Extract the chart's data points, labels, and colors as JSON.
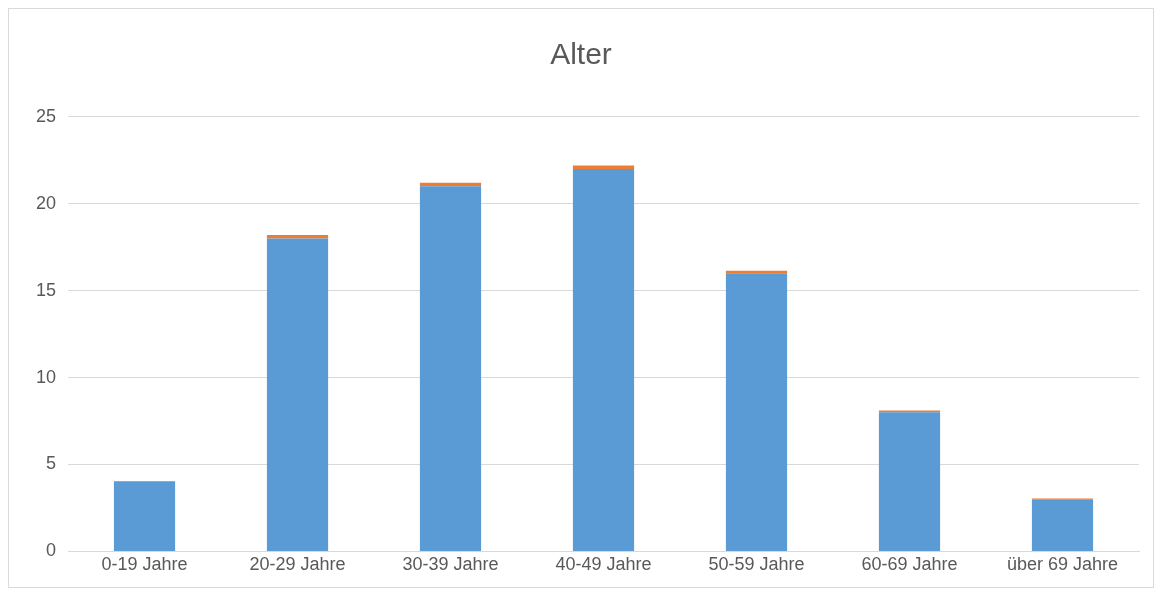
{
  "chart_data": {
    "type": "bar",
    "title": "Alter",
    "stacked": true,
    "categories": [
      "0-19 Jahre",
      "20-29 Jahre",
      "30-39 Jahre",
      "40-49 Jahre",
      "50-59 Jahre",
      "60-69 Jahre",
      "über 69 Jahre"
    ],
    "series": [
      {
        "color": "#5b9bd5",
        "values": [
          4,
          18,
          21,
          22,
          16,
          8,
          3
        ]
      },
      {
        "color": "#ed7d31",
        "values": [
          0.05,
          0.2,
          0.2,
          0.2,
          0.15,
          0.1,
          0.05
        ]
      }
    ],
    "ylim": [
      0,
      25
    ],
    "yticks": [
      0,
      5,
      10,
      15,
      20,
      25
    ],
    "grid": "y",
    "legend": false
  }
}
